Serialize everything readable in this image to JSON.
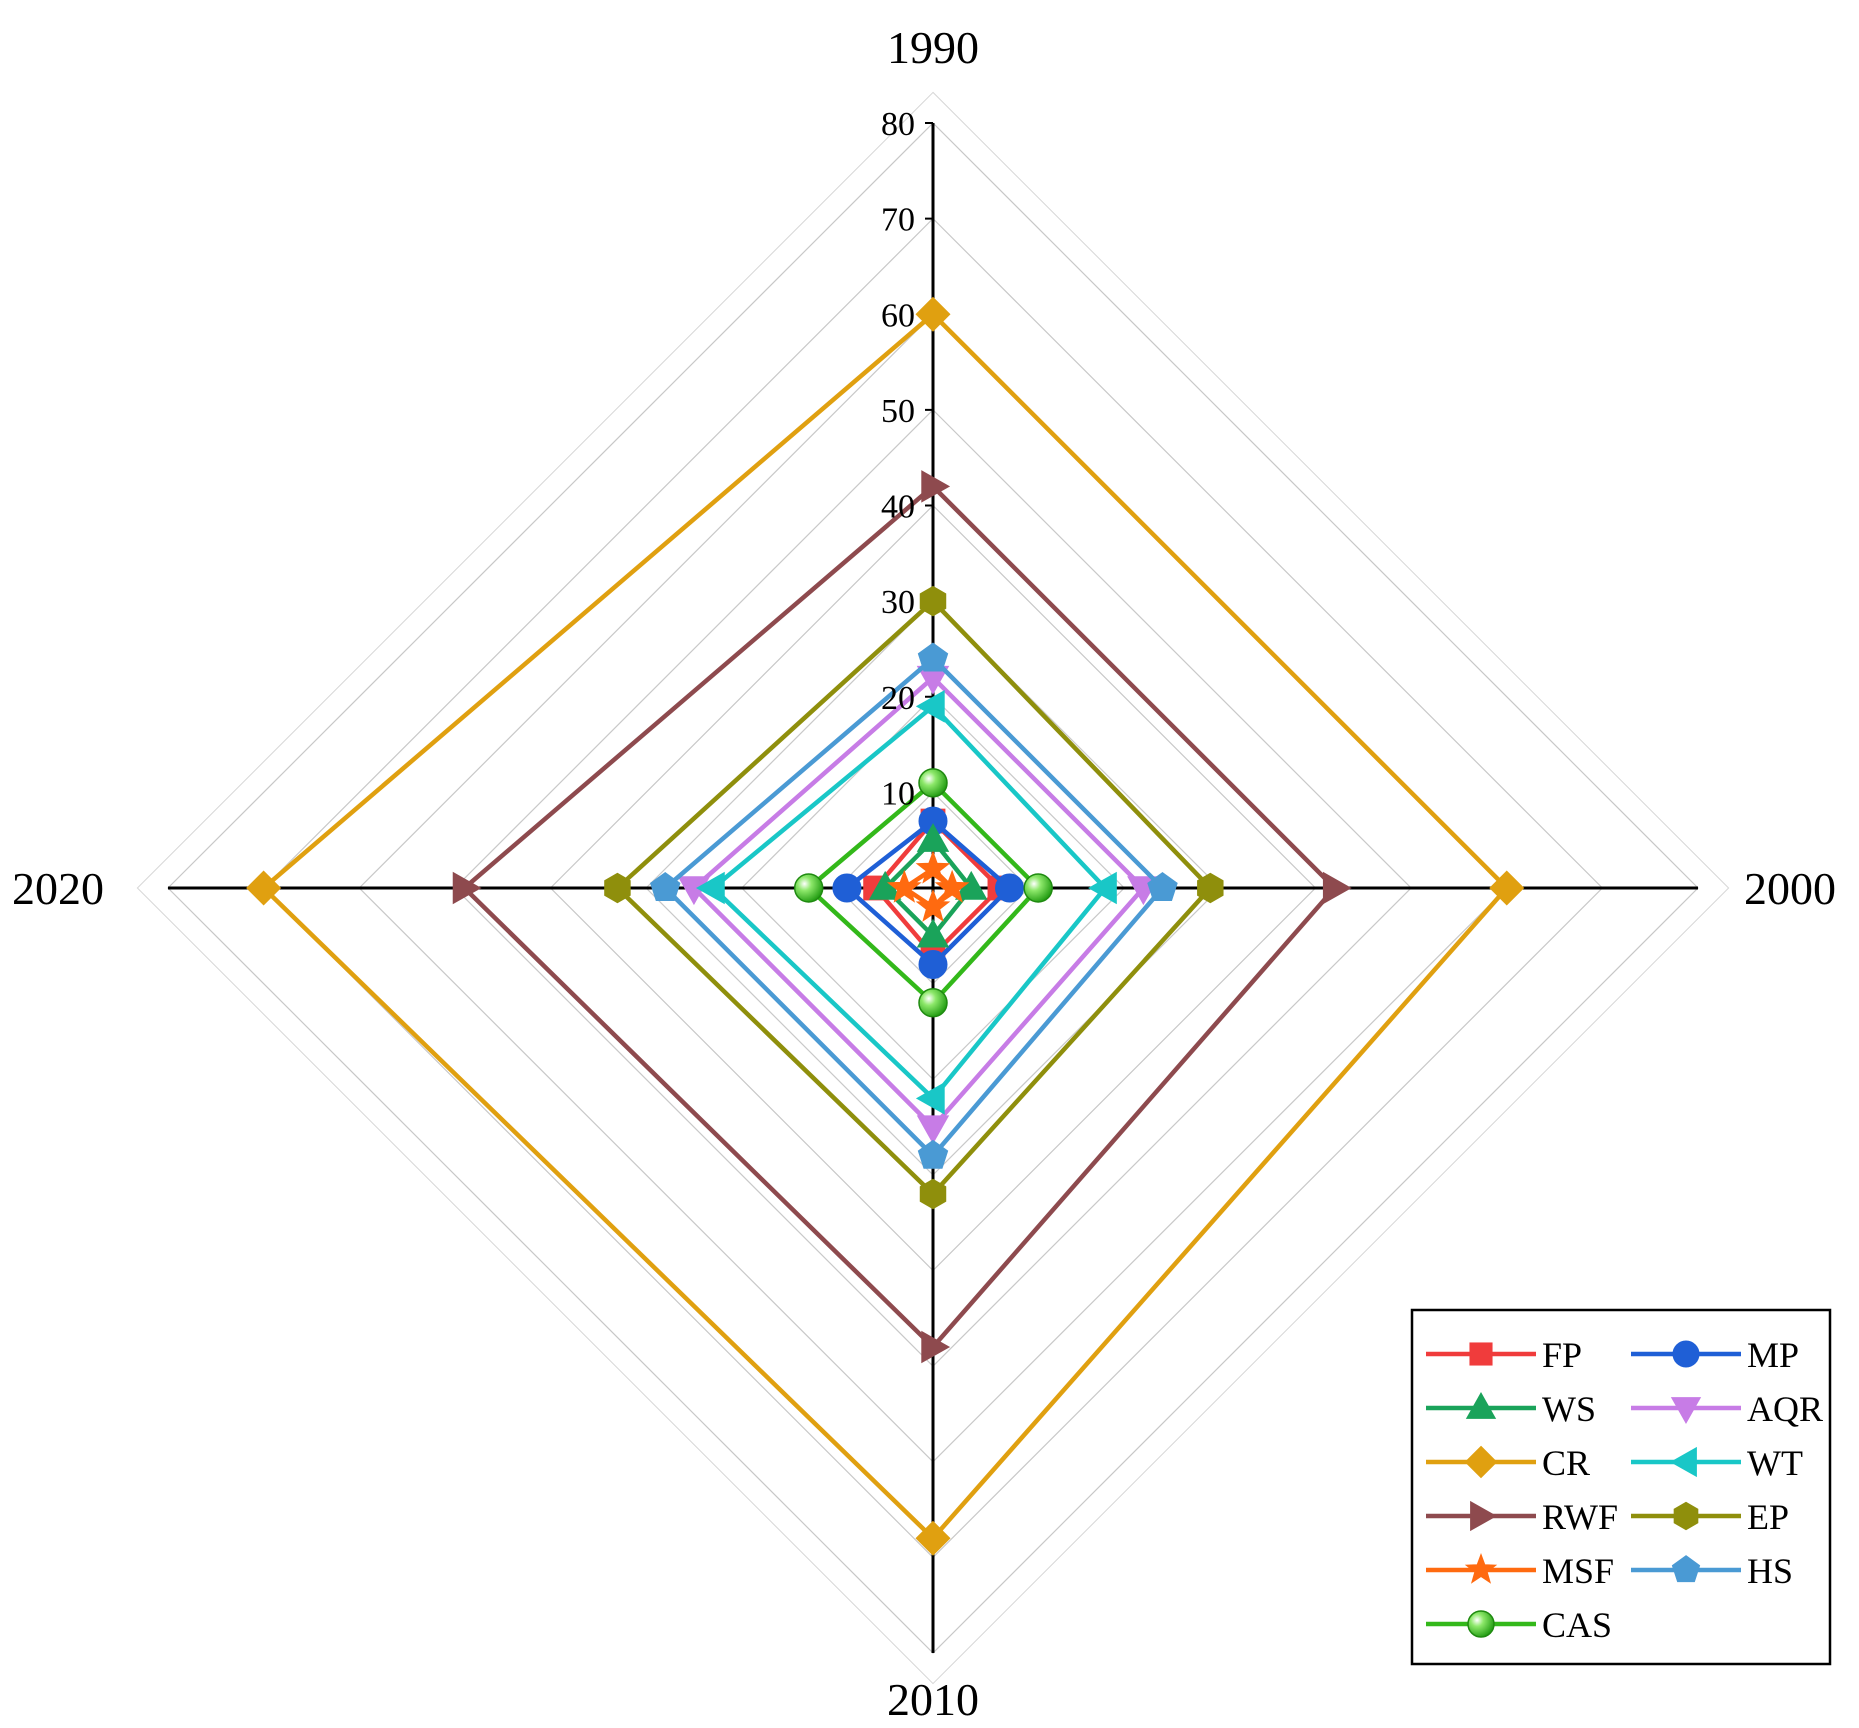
{
  "chart_data": {
    "type": "radar",
    "axes": [
      "1990",
      "2000",
      "2010",
      "2020"
    ],
    "rlim": [
      0,
      80
    ],
    "ticks": [
      "0",
      "10",
      "20",
      "30",
      "40",
      "50",
      "60",
      "70",
      "80"
    ],
    "grid": true,
    "legend_position": "bottom-right",
    "series": [
      {
        "name": "FP",
        "color": "#f03c3c",
        "marker": "square",
        "values": [
          7,
          7,
          7,
          6
        ]
      },
      {
        "name": "MP",
        "color": "#1f5fd6",
        "marker": "circle",
        "values": [
          7,
          8,
          8,
          9
        ]
      },
      {
        "name": "WS",
        "color": "#1aa35a",
        "marker": "triangle-up",
        "values": [
          5,
          4,
          5,
          5
        ]
      },
      {
        "name": "AQR",
        "color": "#c77ce6",
        "marker": "triangle-down",
        "values": [
          22,
          22,
          25,
          25
        ]
      },
      {
        "name": "CR",
        "color": "#e0a010",
        "marker": "diamond",
        "values": [
          60,
          60,
          68,
          70
        ]
      },
      {
        "name": "WT",
        "color": "#19c7c7",
        "marker": "triangle-left",
        "values": [
          19,
          18,
          22,
          23
        ]
      },
      {
        "name": "RWF",
        "color": "#8e4a4e",
        "marker": "triangle-right",
        "values": [
          42,
          42,
          48,
          49
        ]
      },
      {
        "name": "EP",
        "color": "#8f8f0c",
        "marker": "hexagon",
        "values": [
          30,
          29,
          32,
          33
        ]
      },
      {
        "name": "MSF",
        "color": "#ff6a10",
        "marker": "star",
        "values": [
          2,
          2,
          2,
          3
        ]
      },
      {
        "name": "HS",
        "color": "#4a9ad4",
        "marker": "pentagon",
        "values": [
          24,
          24,
          28,
          28
        ]
      },
      {
        "name": "CAS",
        "color": "#33b81a",
        "marker": "sphere",
        "values": [
          11,
          11,
          12,
          13
        ]
      }
    ]
  }
}
